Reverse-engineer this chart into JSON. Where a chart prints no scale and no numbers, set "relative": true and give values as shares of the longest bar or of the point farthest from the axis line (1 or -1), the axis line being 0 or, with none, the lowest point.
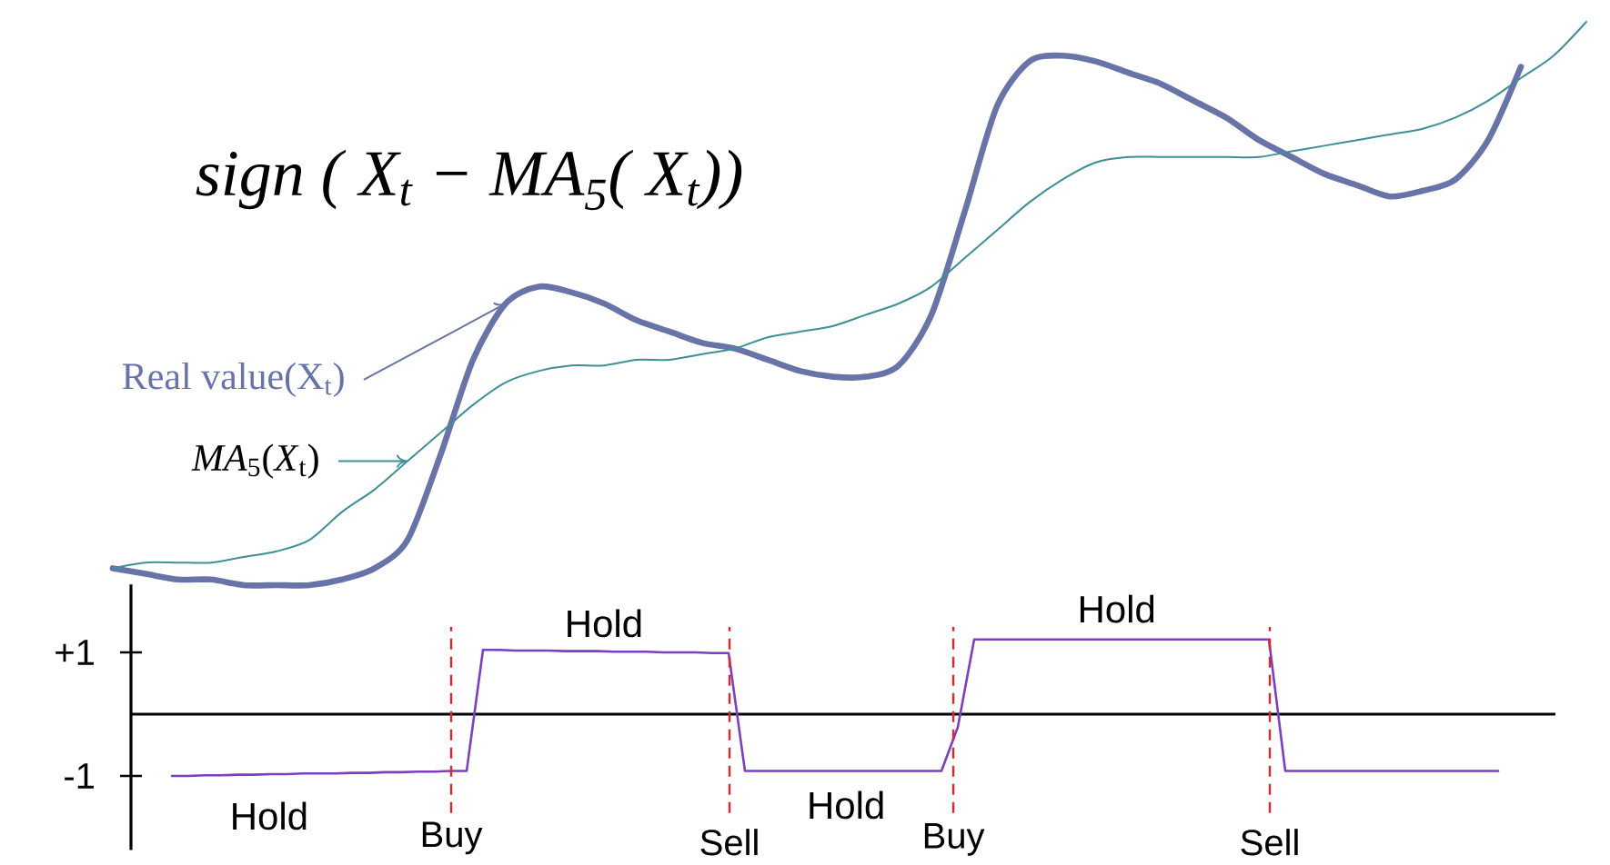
{
  "chart_data": [
    {
      "type": "line",
      "title": "sign ( X$_{t}$ − MA$_{5}$( X$_{t}$))",
      "relative": true,
      "categories": [
        null,
        null,
        null,
        null,
        null,
        null,
        null,
        null,
        null,
        null,
        null,
        null,
        null,
        null,
        null,
        null,
        null,
        null,
        null,
        null,
        null,
        null,
        null,
        null,
        null,
        null,
        null,
        null,
        null,
        null,
        null,
        null,
        null,
        null,
        null,
        null,
        null,
        null,
        null,
        null,
        null,
        null,
        null,
        null,
        null,
        null
      ],
      "series": [
        {
          "name": "Real value(X$_{t}$)",
          "color": "#6873a8",
          "values": [
            0.03,
            0.02,
            0.01,
            0.01,
            0.0,
            0.0,
            0.0,
            0.01,
            0.03,
            0.08,
            0.23,
            0.4,
            0.5,
            0.53,
            0.52,
            0.5,
            0.47,
            0.45,
            0.43,
            0.42,
            0.4,
            0.38,
            0.37,
            0.37,
            0.39,
            0.48,
            0.66,
            0.85,
            0.93,
            0.94,
            0.93,
            0.91,
            0.89,
            0.86,
            0.83,
            0.79,
            0.76,
            0.73,
            0.71,
            0.69,
            0.7,
            0.72,
            0.79,
            0.92,
            null,
            null
          ]
        },
        {
          "name": "*MA*$_{5}$(*X*$_{t}$)",
          "color": "#3f8f98",
          "values": [
            0.03,
            0.04,
            0.04,
            0.04,
            0.05,
            0.06,
            0.08,
            0.13,
            0.17,
            0.22,
            0.27,
            0.32,
            0.36,
            0.38,
            0.39,
            0.39,
            0.4,
            0.4,
            0.41,
            0.42,
            0.44,
            0.45,
            0.46,
            0.48,
            0.5,
            0.53,
            0.58,
            0.63,
            0.68,
            0.72,
            0.75,
            0.76,
            0.76,
            0.76,
            0.76,
            0.76,
            0.77,
            0.78,
            0.79,
            0.8,
            0.81,
            0.83,
            0.86,
            0.9,
            0.94,
            1.0
          ]
        }
      ]
    },
    {
      "type": "line",
      "categories": [
        null,
        null,
        null,
        null,
        null,
        null,
        null,
        null,
        null,
        null,
        null,
        null,
        null,
        null,
        null,
        null,
        null,
        null,
        null,
        null,
        null,
        null,
        null,
        null,
        null,
        null,
        null,
        null,
        null,
        null,
        null,
        null,
        null,
        null,
        null,
        null,
        null,
        null,
        null,
        null,
        null,
        null,
        null,
        null,
        null,
        null,
        null,
        null,
        null,
        null,
        null,
        null,
        null,
        null,
        null,
        null,
        null,
        null,
        null,
        null,
        null,
        null,
        null,
        null,
        null,
        null,
        null,
        null,
        null,
        null,
        null,
        null,
        null,
        null,
        null,
        null,
        null,
        null,
        null,
        null,
        null,
        null,
        null,
        null,
        null,
        null,
        null
      ],
      "values": [
        null,
        null,
        -1.0,
        -1.0,
        -0.99,
        -0.99,
        -0.98,
        -0.98,
        -0.97,
        -0.97,
        -0.96,
        -0.96,
        -0.96,
        -0.95,
        -0.95,
        -0.94,
        -0.94,
        -0.93,
        -0.93,
        -0.92,
        -0.92,
        1.04,
        1.04,
        1.03,
        1.03,
        1.03,
        1.02,
        1.02,
        1.02,
        1.01,
        1.01,
        1.01,
        1.0,
        1.0,
        1.0,
        0.99,
        0.99,
        -0.92,
        -0.92,
        -0.92,
        -0.92,
        -0.92,
        -0.92,
        -0.92,
        -0.92,
        -0.92,
        -0.92,
        -0.92,
        -0.92,
        -0.92,
        -0.21,
        1.21,
        1.21,
        1.21,
        1.21,
        1.21,
        1.21,
        1.21,
        1.21,
        1.21,
        1.21,
        1.21,
        1.21,
        1.21,
        1.21,
        1.21,
        1.21,
        1.21,
        1.21,
        1.21,
        -0.92,
        -0.92,
        -0.92,
        -0.92,
        -0.92,
        -0.92,
        -0.92,
        -0.92,
        -0.92,
        -0.92,
        -0.92,
        -0.92,
        -0.92,
        -0.92,
        null,
        null,
        null
      ],
      "color": "#7b3fc0",
      "ylim": [
        -2.2,
        2.1
      ],
      "yticks": [
        {
          "value": 1,
          "label": "+1"
        },
        {
          "value": -1,
          "label": "-1"
        }
      ],
      "tick_labels": "y",
      "annotations": [
        "Hold",
        "Buy",
        "Hold",
        "Sell",
        "Hold",
        "Buy",
        "Hold",
        "Sell"
      ]
    }
  ]
}
